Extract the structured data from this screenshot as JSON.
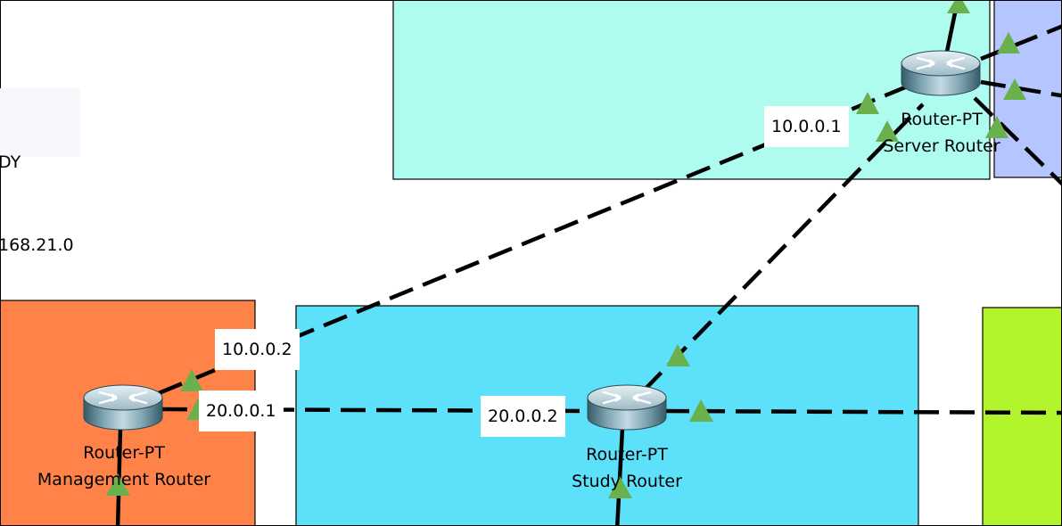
{
  "note": {
    "line1": "DY",
    "line2": "168.21.0"
  },
  "colors": {
    "server_zone": "#aefcf0",
    "right_purple_zone": "#b4c5ff",
    "management_zone": "#ff8348",
    "study_zone": "#5de1fb",
    "right_green_zone": "#b3f52d",
    "link_up_triangle": "#6ab04c",
    "cable": "#000000"
  },
  "devices": [
    {
      "id": "server",
      "model": "Router-PT",
      "name": "Server Router",
      "icon": "router-icon"
    },
    {
      "id": "management",
      "model": "Router-PT",
      "name": "Management Router",
      "icon": "router-icon"
    },
    {
      "id": "study",
      "model": "Router-PT",
      "name": "Study Router",
      "icon": "router-icon"
    }
  ],
  "ip_labels": {
    "server_wan": "10.0.0.1",
    "management_wan_server": "10.0.0.2",
    "management_wan_study": "20.0.0.1",
    "study_wan": "20.0.0.2"
  }
}
